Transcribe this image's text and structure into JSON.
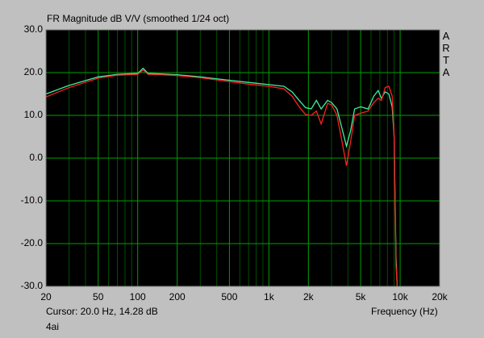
{
  "chart_data": {
    "type": "line",
    "title": "FR Magnitude dB V/V (smoothed 1/24 oct)",
    "side_label": "ARTA",
    "xlabel": "Frequency (Hz)",
    "cursor_readout": "Cursor: 20.0 Hz, 14.28 dB",
    "footer_label": "4ai",
    "xscale": "log",
    "grid": true,
    "xlim": [
      20,
      20000
    ],
    "ylim": [
      -30,
      30
    ],
    "xticks": [
      20,
      50,
      100,
      200,
      500,
      {
        "value": 1000,
        "label": "1k"
      },
      {
        "value": 2000,
        "label": "2k"
      },
      {
        "value": 5000,
        "label": "5k"
      },
      {
        "value": 10000,
        "label": "10k"
      },
      {
        "value": 20000,
        "label": "20k"
      }
    ],
    "xminorticks": [
      30,
      40,
      60,
      70,
      80,
      90,
      300,
      400,
      600,
      700,
      800,
      900,
      3000,
      4000,
      6000,
      7000,
      8000,
      9000
    ],
    "yticks": [
      {
        "value": -30,
        "label": "-30.0"
      },
      {
        "value": -20,
        "label": "-20.0"
      },
      {
        "value": -10,
        "label": "-10.0"
      },
      {
        "value": 0,
        "label": "0.0"
      },
      {
        "value": 10,
        "label": "10.0"
      },
      {
        "value": 20,
        "label": "20.0"
      },
      {
        "value": 30,
        "label": "30.0"
      }
    ],
    "x": [
      20,
      30,
      50,
      70,
      100,
      110,
      120,
      150,
      200,
      300,
      500,
      700,
      1000,
      1300,
      1500,
      1700,
      1900,
      2100,
      2300,
      2500,
      2800,
      3000,
      3300,
      3600,
      3900,
      4200,
      4500,
      5000,
      5700,
      6300,
      6800,
      7200,
      7700,
      8200,
      8700,
      9000,
      9300,
      9500
    ],
    "series": [
      {
        "color": "#40f0a0",
        "values": [
          15,
          17,
          19,
          19.6,
          19.8,
          21,
          19.8,
          19.7,
          19.5,
          19,
          18.2,
          17.7,
          17.2,
          16.8,
          15.5,
          13.5,
          11.8,
          11.5,
          13.5,
          11.5,
          13.5,
          13,
          11.5,
          7,
          2.8,
          6.5,
          11.5,
          12,
          11.5,
          14.5,
          15.8,
          14,
          15.5,
          15,
          12,
          5,
          -23,
          -30
        ]
      },
      {
        "color": "#ff2020",
        "values": [
          14.3,
          16.5,
          18.7,
          19.4,
          19.6,
          20.6,
          19.6,
          19.5,
          19.3,
          18.8,
          17.9,
          17.3,
          16.8,
          16.2,
          14.5,
          12,
          10.2,
          10,
          11,
          8,
          12.8,
          12.5,
          10,
          4,
          -1.8,
          4,
          10,
          10.5,
          11,
          13,
          14,
          13.5,
          16.5,
          16.8,
          14.5,
          5,
          -25,
          -30
        ]
      }
    ]
  }
}
